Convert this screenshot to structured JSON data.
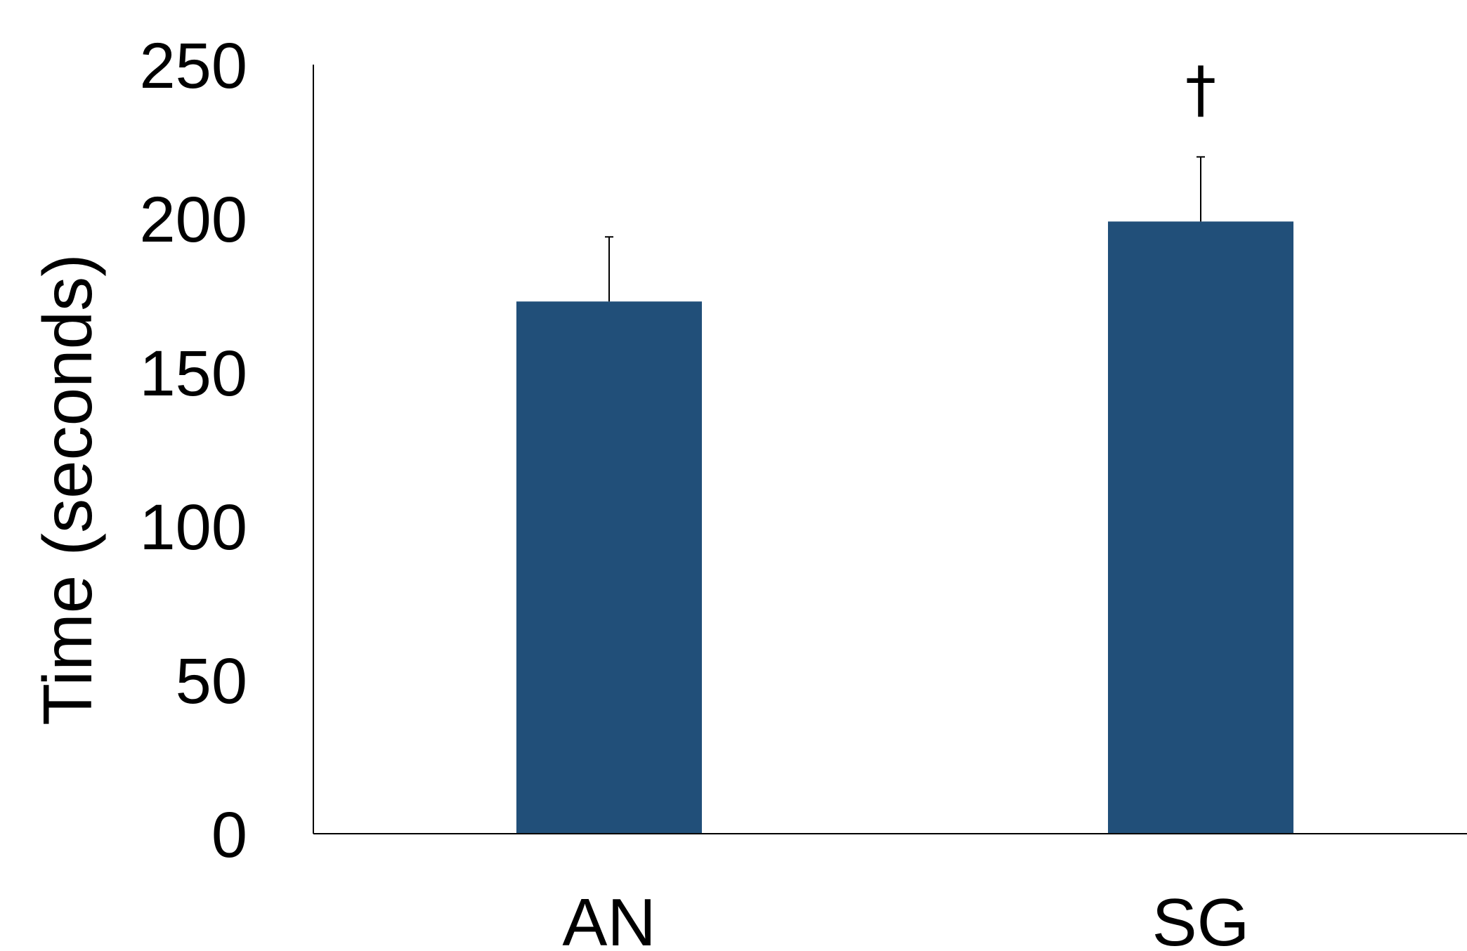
{
  "chart_data": {
    "type": "bar",
    "title": "",
    "xlabel": "",
    "ylabel": "Time (seconds)",
    "categories": [
      "AN",
      "SG"
    ],
    "values": [
      173,
      199
    ],
    "error_bars": [
      21,
      21
    ],
    "annotations": [
      {
        "category": "SG",
        "text": "†"
      }
    ],
    "ylim": [
      0,
      250
    ],
    "yticks": [
      0,
      50,
      100,
      150,
      200,
      250
    ],
    "bar_color": "#214f79",
    "grid": false,
    "legend": "none"
  }
}
